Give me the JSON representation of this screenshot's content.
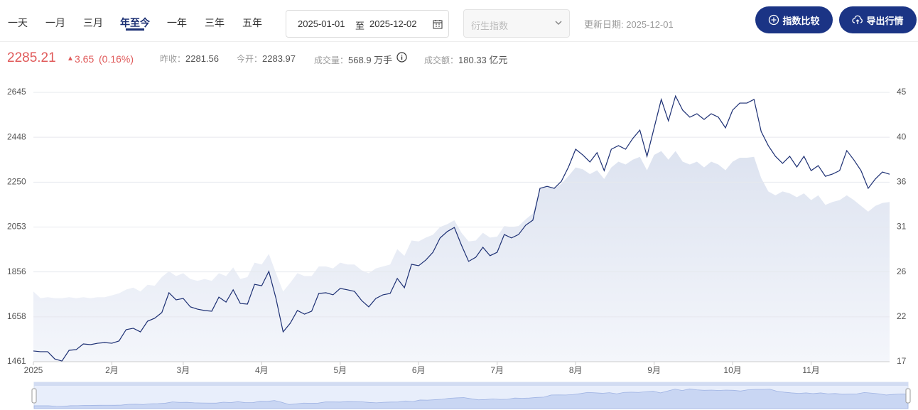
{
  "header": {
    "tabs": [
      "一天",
      "一月",
      "三月",
      "年至今",
      "一年",
      "三年",
      "五年"
    ],
    "active_tab": 3,
    "date_start": "2025-01-01",
    "date_sep": "至",
    "date_end": "2025-12-02",
    "select_placeholder": "衍生指数",
    "update_date": "更新日期: 2025-12-01",
    "buttons": [
      "指数比较",
      "导出行情"
    ]
  },
  "quote": {
    "price": "2285.21",
    "change": "3.65",
    "change_pct": "(0.16%)",
    "stats": [
      {
        "label": "昨收：",
        "value": "2281.56"
      },
      {
        "label": "今开：",
        "value": "2283.97"
      },
      {
        "label": "成交量：",
        "value": "568.9 万手"
      },
      {
        "label": "成交额：",
        "value": "180.33 亿元"
      }
    ]
  },
  "chart_data": {
    "type": "line",
    "grid": true,
    "categories": [
      "2025",
      null,
      null,
      null,
      null,
      null,
      null,
      null,
      null,
      null,
      null,
      "2月",
      null,
      null,
      null,
      null,
      null,
      null,
      null,
      null,
      null,
      "3月",
      null,
      null,
      null,
      null,
      null,
      null,
      null,
      null,
      null,
      null,
      "4月",
      null,
      null,
      null,
      null,
      null,
      null,
      null,
      null,
      null,
      null,
      "5月",
      null,
      null,
      null,
      null,
      null,
      null,
      null,
      null,
      null,
      null,
      "6月",
      null,
      null,
      null,
      null,
      null,
      null,
      null,
      null,
      null,
      null,
      "7月",
      null,
      null,
      null,
      null,
      null,
      null,
      null,
      null,
      null,
      null,
      "8月",
      null,
      null,
      null,
      null,
      null,
      null,
      null,
      null,
      null,
      null,
      "9月",
      null,
      null,
      null,
      null,
      null,
      null,
      null,
      null,
      null,
      null,
      "10月",
      null,
      null,
      null,
      null,
      null,
      null,
      null,
      null,
      null,
      null,
      "11月",
      null,
      null,
      null,
      null,
      null,
      null,
      null,
      null,
      null,
      null,
      null
    ],
    "series": [
      {
        "color": "#1c2f73",
        "values": [
          1508,
          1505,
          1505,
          1473,
          1464,
          1511,
          1514,
          1539,
          1536,
          1542,
          1545,
          1542,
          1552,
          1602,
          1608,
          1592,
          1639,
          1652,
          1677,
          1764,
          1733,
          1739,
          1702,
          1692,
          1686,
          1683,
          1745,
          1723,
          1777,
          1717,
          1714,
          1801,
          1795,
          1858,
          1739,
          1592,
          1630,
          1686,
          1670,
          1683,
          1761,
          1764,
          1755,
          1783,
          1777,
          1770,
          1730,
          1702,
          1739,
          1755,
          1761,
          1827,
          1786,
          1889,
          1883,
          1908,
          1942,
          2005,
          2033,
          2051,
          1973,
          1902,
          1920,
          1964,
          1927,
          1942,
          2020,
          2005,
          2020,
          2061,
          2083,
          2223,
          2232,
          2223,
          2254,
          2317,
          2395,
          2370,
          2339,
          2380,
          2301,
          2395,
          2411,
          2395,
          2442,
          2479,
          2364,
          2489,
          2614,
          2520,
          2629,
          2567,
          2536,
          2551,
          2526,
          2551,
          2536,
          2489,
          2567,
          2598,
          2598,
          2614,
          2473,
          2411,
          2364,
          2333,
          2364,
          2317,
          2364,
          2301,
          2323,
          2276,
          2286,
          2301,
          2389,
          2348,
          2301,
          2223,
          2264,
          2295,
          2285
        ]
      },
      {
        "type": "area",
        "axis": "y2",
        "color": "#dfe4f1",
        "values": [
          24.3,
          23.6,
          23.7,
          23.6,
          23.6,
          23.7,
          23.6,
          23.7,
          23.6,
          23.7,
          23.7,
          23.9,
          24.1,
          24.5,
          24.7,
          24.3,
          25.0,
          24.9,
          25.8,
          26.4,
          25.9,
          26.2,
          25.6,
          25.4,
          25.6,
          25.4,
          26.2,
          25.9,
          26.8,
          25.6,
          25.8,
          27.3,
          27.1,
          28.2,
          26.2,
          24.3,
          25.2,
          26.2,
          25.9,
          25.9,
          26.9,
          26.9,
          26.7,
          27.3,
          27.1,
          27.1,
          26.5,
          26.2,
          26.7,
          26.9,
          27.1,
          28.7,
          28.0,
          29.6,
          29.5,
          29.9,
          30.2,
          31.0,
          31.3,
          31.7,
          30.4,
          29.5,
          29.6,
          30.4,
          29.9,
          30.0,
          31.1,
          31.0,
          31.1,
          31.8,
          32.4,
          35.0,
          35.2,
          35.0,
          35.5,
          36.3,
          37.2,
          37.0,
          36.5,
          36.9,
          36.0,
          37.2,
          37.8,
          37.5,
          38.0,
          38.3,
          36.9,
          38.5,
          38.9,
          38.0,
          38.9,
          37.8,
          37.5,
          37.8,
          37.2,
          37.8,
          37.5,
          36.9,
          37.8,
          38.2,
          38.2,
          38.3,
          36.1,
          34.7,
          34.3,
          34.7,
          34.5,
          34.1,
          34.5,
          33.8,
          34.3,
          33.3,
          33.6,
          33.8,
          34.3,
          33.8,
          33.2,
          32.6,
          33.2,
          33.5,
          33.6
        ]
      }
    ],
    "ylim": [
      1461,
      2645
    ],
    "yticks": [
      1461,
      {
        "value": 1658.3,
        "label": "1658"
      },
      {
        "value": 1855.7,
        "label": "1856"
      },
      2053,
      {
        "value": 2250.3,
        "label": "2250"
      },
      {
        "value": 2447.7,
        "label": "2448"
      },
      2645
    ],
    "y2lim": [
      17,
      45
    ],
    "y2ticks": [
      17,
      {
        "value": 21.67,
        "label": "22"
      },
      {
        "value": 26.33,
        "label": "26"
      },
      31,
      {
        "value": 35.67,
        "label": "36"
      },
      {
        "value": 40.33,
        "label": "40"
      },
      45
    ]
  }
}
